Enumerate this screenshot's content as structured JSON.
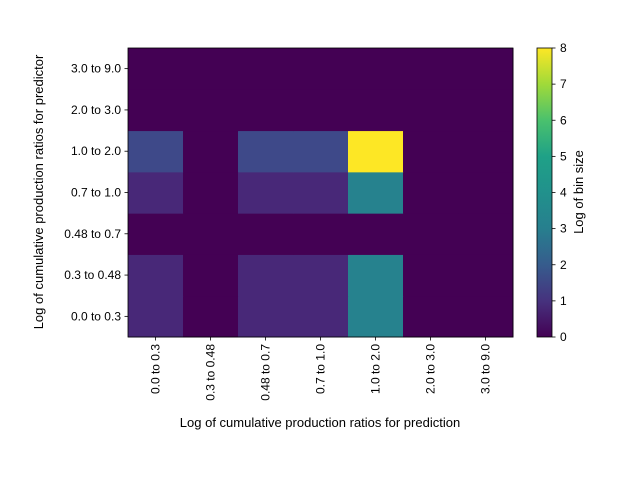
{
  "chart_data": {
    "type": "heatmap",
    "title": "",
    "xlabel": "Log of cumulative production ratios for prediction",
    "ylabel": "Log of cumulative production ratios for predictor",
    "x_categories": [
      "0.0 to 0.3",
      "0.3 to 0.48",
      "0.48 to 0.7",
      "0.7 to 1.0",
      "1.0 to 2.0",
      "2.0 to 3.0",
      "3.0 to 9.0"
    ],
    "y_categories": [
      "0.0 to 0.3",
      "0.3 to 0.48",
      "0.48 to 0.7",
      "0.7 to 1.0",
      "1.0 to 2.0",
      "2.0 to 3.0",
      "3.0 to 9.0"
    ],
    "values": [
      [
        1,
        0,
        1,
        1,
        4,
        0,
        0
      ],
      [
        1,
        0,
        1,
        1,
        4,
        0,
        0
      ],
      [
        0,
        0,
        0,
        0,
        0,
        0,
        0
      ],
      [
        1,
        0,
        1,
        1,
        4,
        0,
        0
      ],
      [
        2,
        0,
        2,
        2,
        8,
        0,
        0
      ],
      [
        0,
        0,
        0,
        0,
        0,
        0,
        0
      ],
      [
        0,
        0,
        0,
        0,
        0,
        0,
        0
      ]
    ],
    "values_row_order": "first row = bottom (0.0 to 0.3)",
    "colormap": "viridis",
    "colorbar": {
      "label": "Log of bin size",
      "min": 0,
      "max": 8,
      "ticks": [
        "0",
        "1",
        "2",
        "3",
        "4",
        "5",
        "6",
        "7",
        "8"
      ]
    },
    "grid": false
  }
}
